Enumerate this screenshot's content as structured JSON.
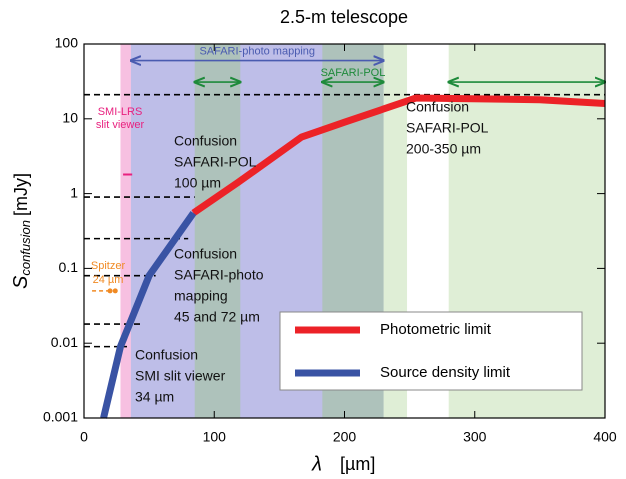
{
  "chart_data": {
    "type": "line",
    "title": "2.5-m telescope",
    "x_label": "[µm]",
    "x_symbol": "λ",
    "y_label": {
      "symbol": "S",
      "subscript": "confusion",
      "unit": "[mJy]"
    },
    "log_y": true,
    "xlim": [
      0,
      400
    ],
    "xticks": [
      0,
      100,
      200,
      300,
      400
    ],
    "ylim": [
      0.001,
      100
    ],
    "yticks": [
      0.001,
      0.01,
      0.1,
      1,
      10,
      100
    ],
    "regions": [
      {
        "x0": 28,
        "x1": 36,
        "color": "rgba(240,140,200,0.55)"
      },
      {
        "x0": 36,
        "x1": 230,
        "color": "rgba(110,110,205,0.45)"
      },
      {
        "x0": 85,
        "x1": 120,
        "color": "rgba(150,200,120,0.4)"
      },
      {
        "x0": 183,
        "x1": 230,
        "color": "rgba(150,200,120,0.4)"
      },
      {
        "x0": 230,
        "x1": 248,
        "color": "rgba(150,200,120,0.3)"
      },
      {
        "x0": 280,
        "x1": 400,
        "color": "rgba(150,200,120,0.3)"
      }
    ],
    "series": [
      {
        "name": "Photometric limit",
        "color": "#ec2227",
        "x": [
          84,
          118,
          167,
          200,
          255,
          350,
          400
        ],
        "values": [
          0.55,
          1.4,
          5.7,
          9,
          19,
          18,
          16
        ]
      },
      {
        "name": "Source density limit",
        "color": "#3953a4",
        "x": [
          15,
          28,
          50,
          84
        ],
        "values": [
          0.001,
          0.009,
          0.08,
          0.55
        ]
      }
    ],
    "dashed_levels": [
      {
        "y": 21,
        "x_end": 400
      },
      {
        "y": 0.9,
        "x_end": 85
      },
      {
        "y": 0.25,
        "x_end": 80
      },
      {
        "y": 0.08,
        "x_end": 55
      },
      {
        "y": 0.018,
        "x_end": 45
      },
      {
        "y": 0.009,
        "x_end": 33
      }
    ],
    "arrows": [
      {
        "x0": 36,
        "x1": 230,
        "y": 60,
        "color": "#4a5bb0",
        "label": "SAFARI-photo mapping"
      },
      {
        "x0": 85,
        "x1": 120,
        "y": 31,
        "color": "#1e8a3a"
      },
      {
        "x0": 183,
        "x1": 230,
        "y": 31,
        "color": "#1e8a3a",
        "label": "SAFARI-POL"
      },
      {
        "x0": 280,
        "x1": 400,
        "y": 31,
        "color": "#1e8a3a"
      }
    ],
    "spitzer": {
      "label": [
        "Spitzer",
        "24 µm"
      ],
      "x": [
        20,
        24
      ],
      "y": 0.05,
      "color": "#f08a24"
    },
    "smi_lrs": {
      "label": [
        "SMI-LRS",
        "slit viewer"
      ],
      "x": [
        30,
        37
      ],
      "y": 1.8,
      "color": "#e8217f"
    },
    "annotations": [
      [
        "Confusion",
        "SAFARI-POL",
        "100 µm"
      ],
      [
        "Confusion",
        "SAFARI-POL",
        "200-350 µm"
      ],
      [
        "Confusion",
        "SAFARI-photo",
        "mapping",
        "45 and 72 µm"
      ],
      [
        "Confusion",
        "SMI slit viewer",
        "34 µm"
      ]
    ]
  }
}
